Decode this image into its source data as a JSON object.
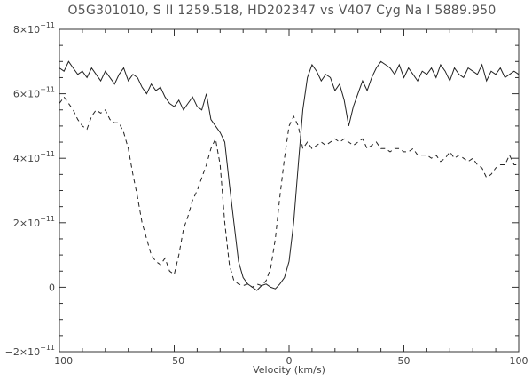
{
  "chart_data": {
    "type": "line",
    "title": "O5G301010, S II 1259.518, HD202347 vs V407 Cyg Na I 5889.950",
    "xlabel": "Velocity (km/s)",
    "ylabel": "",
    "xlim": [
      -100,
      100
    ],
    "ylim": [
      -2e-11,
      8e-11
    ],
    "x_ticks": [
      {
        "value": -100,
        "label": "−100"
      },
      {
        "value": -50,
        "label": "−50"
      },
      {
        "value": 0,
        "label": "0"
      },
      {
        "value": 50,
        "label": "50"
      },
      {
        "value": 100,
        "label": "100"
      }
    ],
    "y_ticks": [
      {
        "value": -2e-11,
        "mantissa": "−2×10",
        "exponent": "−11"
      },
      {
        "value": 0,
        "mantissa": "0",
        "exponent": ""
      },
      {
        "value": 2e-11,
        "mantissa": "2×10",
        "exponent": "−11"
      },
      {
        "value": 4e-11,
        "mantissa": "4×10",
        "exponent": "−11"
      },
      {
        "value": 6e-11,
        "mantissa": "6×10",
        "exponent": "−11"
      },
      {
        "value": 8e-11,
        "mantissa": "8×10",
        "exponent": "−11"
      }
    ],
    "grid": false,
    "series": [
      {
        "style": "solid",
        "x": [
          -100,
          -98,
          -96,
          -94,
          -92,
          -90,
          -88,
          -86,
          -84,
          -82,
          -80,
          -78,
          -76,
          -74,
          -72,
          -70,
          -68,
          -66,
          -64,
          -62,
          -60,
          -58,
          -56,
          -54,
          -52,
          -50,
          -48,
          -46,
          -44,
          -42,
          -40,
          -38,
          -36,
          -34,
          -32,
          -30,
          -28,
          -26,
          -24,
          -22,
          -20,
          -18,
          -16,
          -14,
          -12,
          -10,
          -8,
          -6,
          -4,
          -2,
          0,
          2,
          4,
          6,
          8,
          10,
          12,
          14,
          16,
          18,
          20,
          22,
          24,
          26,
          28,
          30,
          32,
          34,
          36,
          38,
          40,
          42,
          44,
          46,
          48,
          50,
          52,
          54,
          56,
          58,
          60,
          62,
          64,
          66,
          68,
          70,
          72,
          74,
          76,
          78,
          80,
          82,
          84,
          86,
          88,
          90,
          92,
          94,
          96,
          98,
          100
        ],
        "y": [
          6.8,
          6.7,
          7.0,
          6.8,
          6.6,
          6.7,
          6.5,
          6.8,
          6.6,
          6.4,
          6.7,
          6.5,
          6.3,
          6.6,
          6.8,
          6.4,
          6.6,
          6.5,
          6.2,
          6.0,
          6.3,
          6.1,
          6.2,
          5.9,
          5.7,
          5.6,
          5.8,
          5.5,
          5.7,
          5.9,
          5.6,
          5.5,
          6.0,
          5.2,
          5.0,
          4.8,
          4.5,
          3.2,
          2.0,
          0.8,
          0.3,
          0.1,
          0.0,
          -0.1,
          0.05,
          0.1,
          0.0,
          -0.05,
          0.1,
          0.3,
          0.8,
          2.0,
          3.8,
          5.5,
          6.5,
          6.9,
          6.7,
          6.4,
          6.6,
          6.5,
          6.1,
          6.3,
          5.8,
          5.0,
          5.6,
          6.0,
          6.4,
          6.1,
          6.5,
          6.8,
          7.0,
          6.9,
          6.8,
          6.6,
          6.9,
          6.5,
          6.8,
          6.6,
          6.4,
          6.7,
          6.6,
          6.8,
          6.5,
          6.9,
          6.7,
          6.4,
          6.8,
          6.6,
          6.5,
          6.8,
          6.7,
          6.6,
          6.9,
          6.4,
          6.7,
          6.6,
          6.8,
          6.5,
          6.6,
          6.7,
          6.6
        ]
      },
      {
        "style": "dashed",
        "x": [
          -100,
          -98,
          -96,
          -94,
          -92,
          -90,
          -88,
          -86,
          -84,
          -82,
          -80,
          -78,
          -76,
          -74,
          -72,
          -70,
          -68,
          -66,
          -64,
          -62,
          -60,
          -58,
          -56,
          -54,
          -52,
          -50,
          -48,
          -46,
          -44,
          -42,
          -40,
          -38,
          -36,
          -34,
          -32,
          -30,
          -28,
          -26,
          -24,
          -22,
          -20,
          -18,
          -16,
          -14,
          -12,
          -10,
          -8,
          -6,
          -4,
          -2,
          0,
          2,
          4,
          6,
          8,
          10,
          12,
          14,
          16,
          18,
          20,
          22,
          24,
          26,
          28,
          30,
          32,
          34,
          36,
          38,
          40,
          42,
          44,
          46,
          48,
          50,
          52,
          54,
          56,
          58,
          60,
          62,
          64,
          66,
          68,
          70,
          72,
          74,
          76,
          78,
          80,
          82,
          84,
          86,
          88,
          90,
          92,
          94,
          96,
          98,
          100
        ],
        "y": [
          5.7,
          5.9,
          5.7,
          5.5,
          5.2,
          5.0,
          4.9,
          5.3,
          5.5,
          5.4,
          5.5,
          5.2,
          5.1,
          5.1,
          4.8,
          4.3,
          3.5,
          2.8,
          2.0,
          1.5,
          1.0,
          0.8,
          0.7,
          0.9,
          0.5,
          0.4,
          1.0,
          1.8,
          2.2,
          2.7,
          3.0,
          3.4,
          3.8,
          4.3,
          4.6,
          3.8,
          2.0,
          0.7,
          0.2,
          0.1,
          0.05,
          0.1,
          0.0,
          0.1,
          0.05,
          0.2,
          0.6,
          1.5,
          2.8,
          4.0,
          5.0,
          5.3,
          5.0,
          4.3,
          4.5,
          4.3,
          4.4,
          4.5,
          4.4,
          4.5,
          4.6,
          4.5,
          4.6,
          4.5,
          4.4,
          4.5,
          4.6,
          4.3,
          4.4,
          4.5,
          4.3,
          4.3,
          4.2,
          4.3,
          4.3,
          4.2,
          4.2,
          4.3,
          4.1,
          4.1,
          4.1,
          4.0,
          4.1,
          3.9,
          4.0,
          4.2,
          4.0,
          4.1,
          4.0,
          3.9,
          4.0,
          3.8,
          3.7,
          3.4,
          3.5,
          3.7,
          3.8,
          3.8,
          4.1,
          3.8,
          3.8
        ]
      }
    ],
    "y_scale_note": "y values listed in units of 1e-11"
  }
}
